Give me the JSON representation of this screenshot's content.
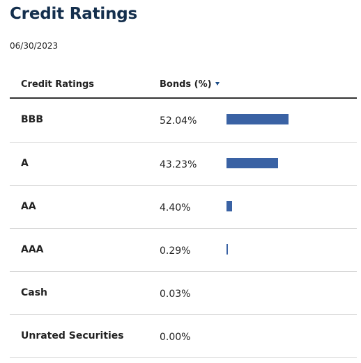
{
  "header": {
    "title": "Credit Ratings",
    "as_of_date": "06/30/2023"
  },
  "table": {
    "columns": {
      "rating": "Credit Ratings",
      "bonds": "Bonds (%)"
    },
    "sort_indicator_icon": "caret-down-icon",
    "bar_color": "#3a62a4",
    "bar_scale_max_percent": 100,
    "rows": [
      {
        "rating": "BBB",
        "bonds_label": "52.04%",
        "bonds_value": 52.04
      },
      {
        "rating": "A",
        "bonds_label": "43.23%",
        "bonds_value": 43.23
      },
      {
        "rating": "AA",
        "bonds_label": "4.40%",
        "bonds_value": 4.4
      },
      {
        "rating": "AAA",
        "bonds_label": "0.29%",
        "bonds_value": 0.29
      },
      {
        "rating": "Cash",
        "bonds_label": "0.03%",
        "bonds_value": 0.03
      },
      {
        "rating": "Unrated Securities",
        "bonds_label": "0.00%",
        "bonds_value": 0.0
      }
    ]
  }
}
